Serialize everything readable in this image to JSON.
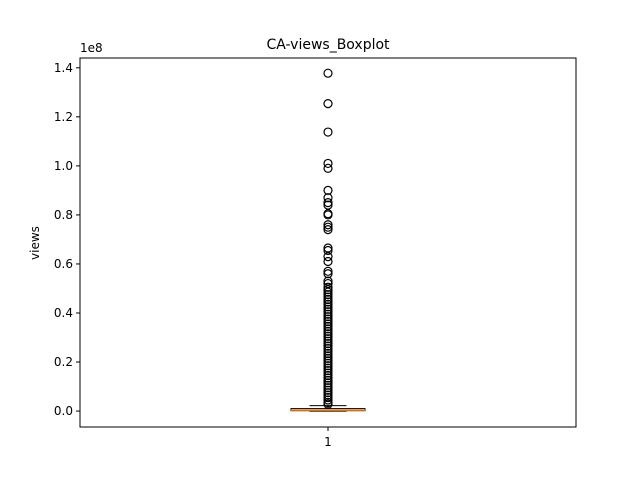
{
  "chart_data": {
    "type": "boxplot",
    "title": "CA-views_Boxplot",
    "xlabel": "",
    "ylabel": "views",
    "y_scale_label": "1e8",
    "y_multiplier": 100000000,
    "ylim": [
      -6500000,
      144000000
    ],
    "y_ticks": [
      {
        "value": 0,
        "label": "0.0"
      },
      {
        "value": 20000000,
        "label": "0.2"
      },
      {
        "value": 40000000,
        "label": "0.4"
      },
      {
        "value": 60000000,
        "label": "0.6"
      },
      {
        "value": 80000000,
        "label": "0.8"
      },
      {
        "value": 100000000,
        "label": "1.0"
      },
      {
        "value": 120000000,
        "label": "1.2"
      },
      {
        "value": 140000000,
        "label": "1.4"
      }
    ],
    "categories": [
      "1"
    ],
    "grid": false,
    "boxes": [
      {
        "category": "1",
        "whisker_low": 0,
        "q1": 150000,
        "median": 400000,
        "q3": 1000000,
        "whisker_high": 2200000,
        "outliers": [
          137800000,
          125400000,
          113800000,
          101000000,
          99000000,
          90000000,
          87000000,
          85000000,
          84000000,
          80500000,
          80000000,
          76000000,
          75000000,
          74000000,
          66500000,
          65500000,
          63000000,
          61000000,
          57000000,
          56000000,
          53000000,
          52000000,
          50500000,
          49500000,
          48500000,
          47500000,
          46500000,
          45500000,
          44500000,
          43500000,
          42500000,
          41500000,
          40500000,
          39500000,
          38500000,
          37500000,
          36500000,
          35500000,
          34500000,
          33500000,
          32500000,
          31500000,
          30500000,
          29500000,
          28500000,
          27500000,
          26500000,
          25500000,
          24500000,
          23500000,
          22500000,
          21500000,
          20500000,
          19500000,
          18500000,
          17500000,
          16500000,
          15500000,
          14500000,
          13500000,
          12500000,
          11500000,
          10500000,
          9500000,
          8500000,
          7500000,
          6500000,
          5500000,
          4500000,
          3500000,
          2800000
        ]
      }
    ],
    "colors": {
      "median": "#ff7f0e",
      "box": "#000000",
      "outlier": "#000000"
    }
  }
}
